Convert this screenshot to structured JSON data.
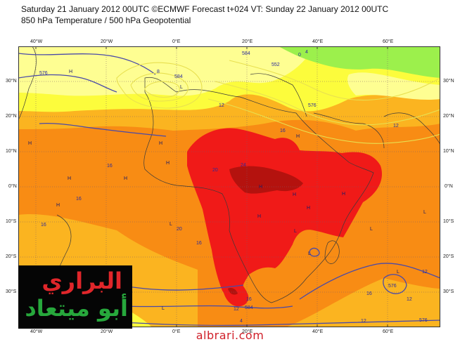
{
  "header": {
    "line1": "Saturday 21 January 2012 00UTC ©ECMWF Forecast t+024 VT: Sunday 22 January 2012 00UTC",
    "line2": "850 hPa Temperature / 500 hPa Geopotential"
  },
  "axes": {
    "top_lon": [
      "40°W",
      "20°W",
      "0°E",
      "20°E",
      "40°E",
      "60°E"
    ],
    "bottom_lon": [
      "40°W",
      "20°W",
      "0°E",
      "20°E",
      "40°E",
      "60°E"
    ],
    "left_lat": [
      "30°N",
      "20°N",
      "10°N",
      "0°N",
      "10°S",
      "20°S",
      "30°S"
    ],
    "right_lat": [
      "30°N",
      "20°N",
      "10°N",
      "0°N",
      "10°S",
      "20°S",
      "30°S"
    ]
  },
  "colors": {
    "red": "#f01a18",
    "dark_red": "#b4120e",
    "orange": "#f88c14",
    "light_orange": "#fbb420",
    "yellow": "#fcfc3c",
    "light_yellow": "#fefe92",
    "green": "#9cf04c",
    "contour": "#4a4aa8",
    "grid": "#7a5a6a"
  },
  "contour_labels": [
    "576",
    "584",
    "8",
    "12",
    "584",
    "4",
    "552",
    "0",
    "576",
    "12",
    "16",
    "20",
    "24",
    "16",
    "16",
    "16",
    "20",
    "16",
    "16",
    "12",
    "16",
    "576",
    "576",
    "584",
    "12",
    "12",
    "4",
    "12"
  ],
  "pressure_marks": [
    "H",
    "H",
    "L",
    "H",
    "H",
    "H",
    "H",
    "H",
    "H",
    "H",
    "H",
    "H",
    "L",
    "L",
    "L",
    "L",
    "L",
    "L",
    "L",
    "H",
    "H",
    "L"
  ],
  "logo": {
    "line1": "البراري",
    "line2": "أبو ميتعاد"
  },
  "watermark": "albrari.com"
}
